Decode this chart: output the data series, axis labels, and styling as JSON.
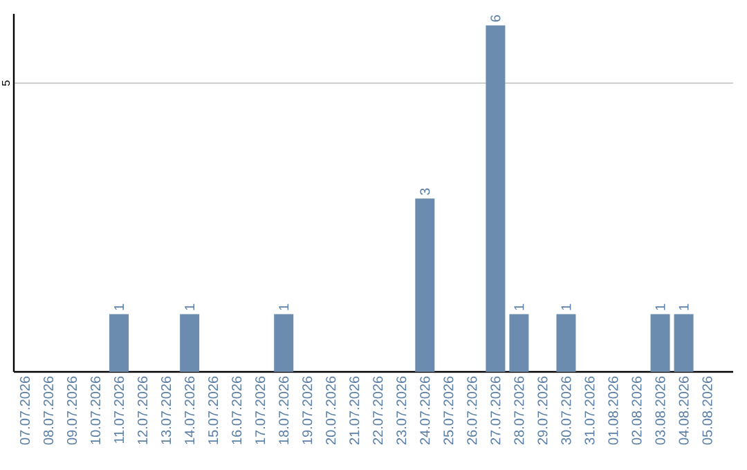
{
  "chart_data": {
    "type": "bar",
    "categories": [
      "07.07.2026",
      "08.07.2026",
      "09.07.2026",
      "10.07.2026",
      "11.07.2026",
      "12.07.2026",
      "13.07.2026",
      "14.07.2026",
      "15.07.2026",
      "16.07.2026",
      "17.07.2026",
      "18.07.2026",
      "19.07.2026",
      "20.07.2026",
      "21.07.2026",
      "22.07.2026",
      "23.07.2026",
      "24.07.2026",
      "25.07.2026",
      "26.07.2026",
      "27.07.2026",
      "28.07.2026",
      "29.07.2026",
      "30.07.2026",
      "31.07.2026",
      "01.08.2026",
      "02.08.2026",
      "03.08.2026",
      "04.08.2026",
      "05.08.2026"
    ],
    "values": [
      0,
      0,
      0,
      0,
      1,
      0,
      0,
      1,
      0,
      0,
      0,
      1,
      0,
      0,
      0,
      0,
      0,
      3,
      0,
      0,
      6,
      1,
      0,
      1,
      0,
      0,
      0,
      1,
      1,
      0
    ],
    "value_labels": [
      null,
      null,
      null,
      null,
      "1",
      null,
      null,
      "1",
      null,
      null,
      null,
      "1",
      null,
      null,
      null,
      null,
      null,
      "3",
      null,
      null,
      "6",
      "1",
      null,
      "1",
      null,
      null,
      null,
      "1",
      "1",
      null
    ],
    "color": "#6b8cae",
    "ylim": [
      0,
      6.2
    ],
    "yticks": [
      5
    ],
    "grid": "y"
  }
}
